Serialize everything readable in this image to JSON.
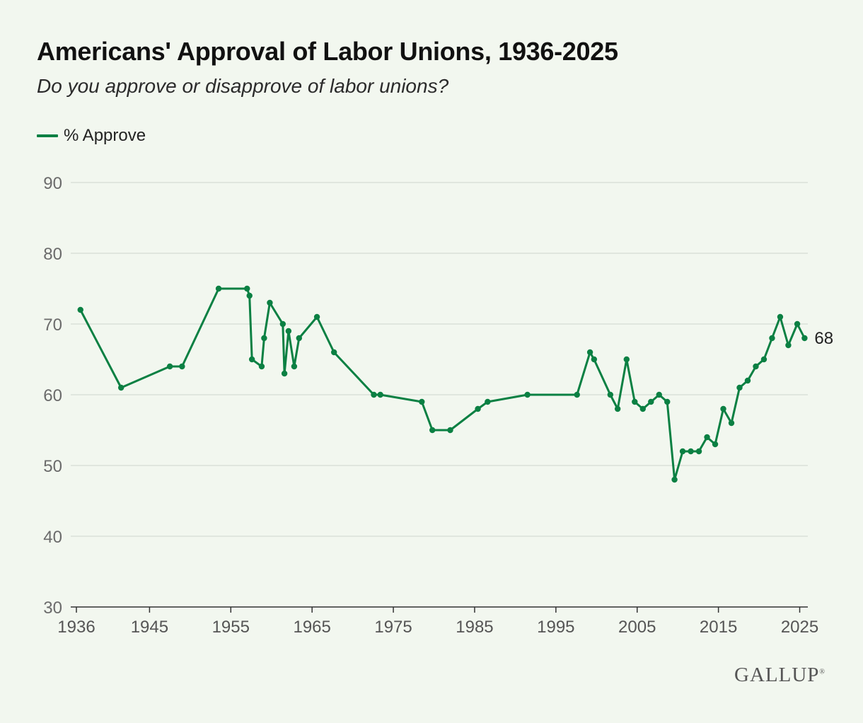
{
  "chart_data": {
    "type": "line",
    "title": "Americans' Approval of Labor Unions, 1936-2025",
    "subtitle": "Do you approve or disapprove of labor unions?",
    "xlabel": "",
    "ylabel": "",
    "xlim": [
      1936,
      2026
    ],
    "ylim": [
      30,
      90
    ],
    "y_ticks": [
      30,
      40,
      50,
      60,
      70,
      80,
      90
    ],
    "x_ticks": [
      1936,
      1945,
      1955,
      1965,
      1975,
      1985,
      1995,
      2005,
      2015,
      2025
    ],
    "grid": true,
    "legend_position": "top-left",
    "end_label": "68",
    "series": [
      {
        "name": "% Approve",
        "color": "#0b8043",
        "points": [
          [
            1936.5,
            72
          ],
          [
            1941.5,
            61
          ],
          [
            1947.5,
            64
          ],
          [
            1949,
            64
          ],
          [
            1953.5,
            75
          ],
          [
            1957,
            75
          ],
          [
            1957.3,
            74
          ],
          [
            1957.6,
            65
          ],
          [
            1958.8,
            64
          ],
          [
            1959.1,
            68
          ],
          [
            1959.8,
            73
          ],
          [
            1961.4,
            70
          ],
          [
            1961.6,
            63
          ],
          [
            1962.1,
            69
          ],
          [
            1962.8,
            64
          ],
          [
            1963.4,
            68
          ],
          [
            1965.6,
            71
          ],
          [
            1967.7,
            66
          ],
          [
            1972.6,
            60
          ],
          [
            1973.4,
            60
          ],
          [
            1978.5,
            59
          ],
          [
            1979.8,
            55
          ],
          [
            1982,
            55
          ],
          [
            1985.4,
            58
          ],
          [
            1986.6,
            59
          ],
          [
            1991.5,
            60
          ],
          [
            1997.6,
            60
          ],
          [
            1999.2,
            66
          ],
          [
            1999.7,
            65
          ],
          [
            2001.7,
            60
          ],
          [
            2002.6,
            58
          ],
          [
            2003.7,
            65
          ],
          [
            2004.7,
            59
          ],
          [
            2005.7,
            58
          ],
          [
            2006.7,
            59
          ],
          [
            2007.7,
            60
          ],
          [
            2008.7,
            59
          ],
          [
            2009.6,
            48
          ],
          [
            2010.6,
            52
          ],
          [
            2011.6,
            52
          ],
          [
            2012.6,
            52
          ],
          [
            2013.6,
            54
          ],
          [
            2014.6,
            53
          ],
          [
            2015.6,
            58
          ],
          [
            2016.6,
            56
          ],
          [
            2017.6,
            61
          ],
          [
            2018.6,
            62
          ],
          [
            2019.6,
            64
          ],
          [
            2020.6,
            65
          ],
          [
            2021.6,
            68
          ],
          [
            2022.6,
            71
          ],
          [
            2023.6,
            67
          ],
          [
            2024.7,
            70
          ],
          [
            2025.6,
            68
          ]
        ]
      }
    ]
  },
  "brand": "GALLUP",
  "brand_mark": "®"
}
